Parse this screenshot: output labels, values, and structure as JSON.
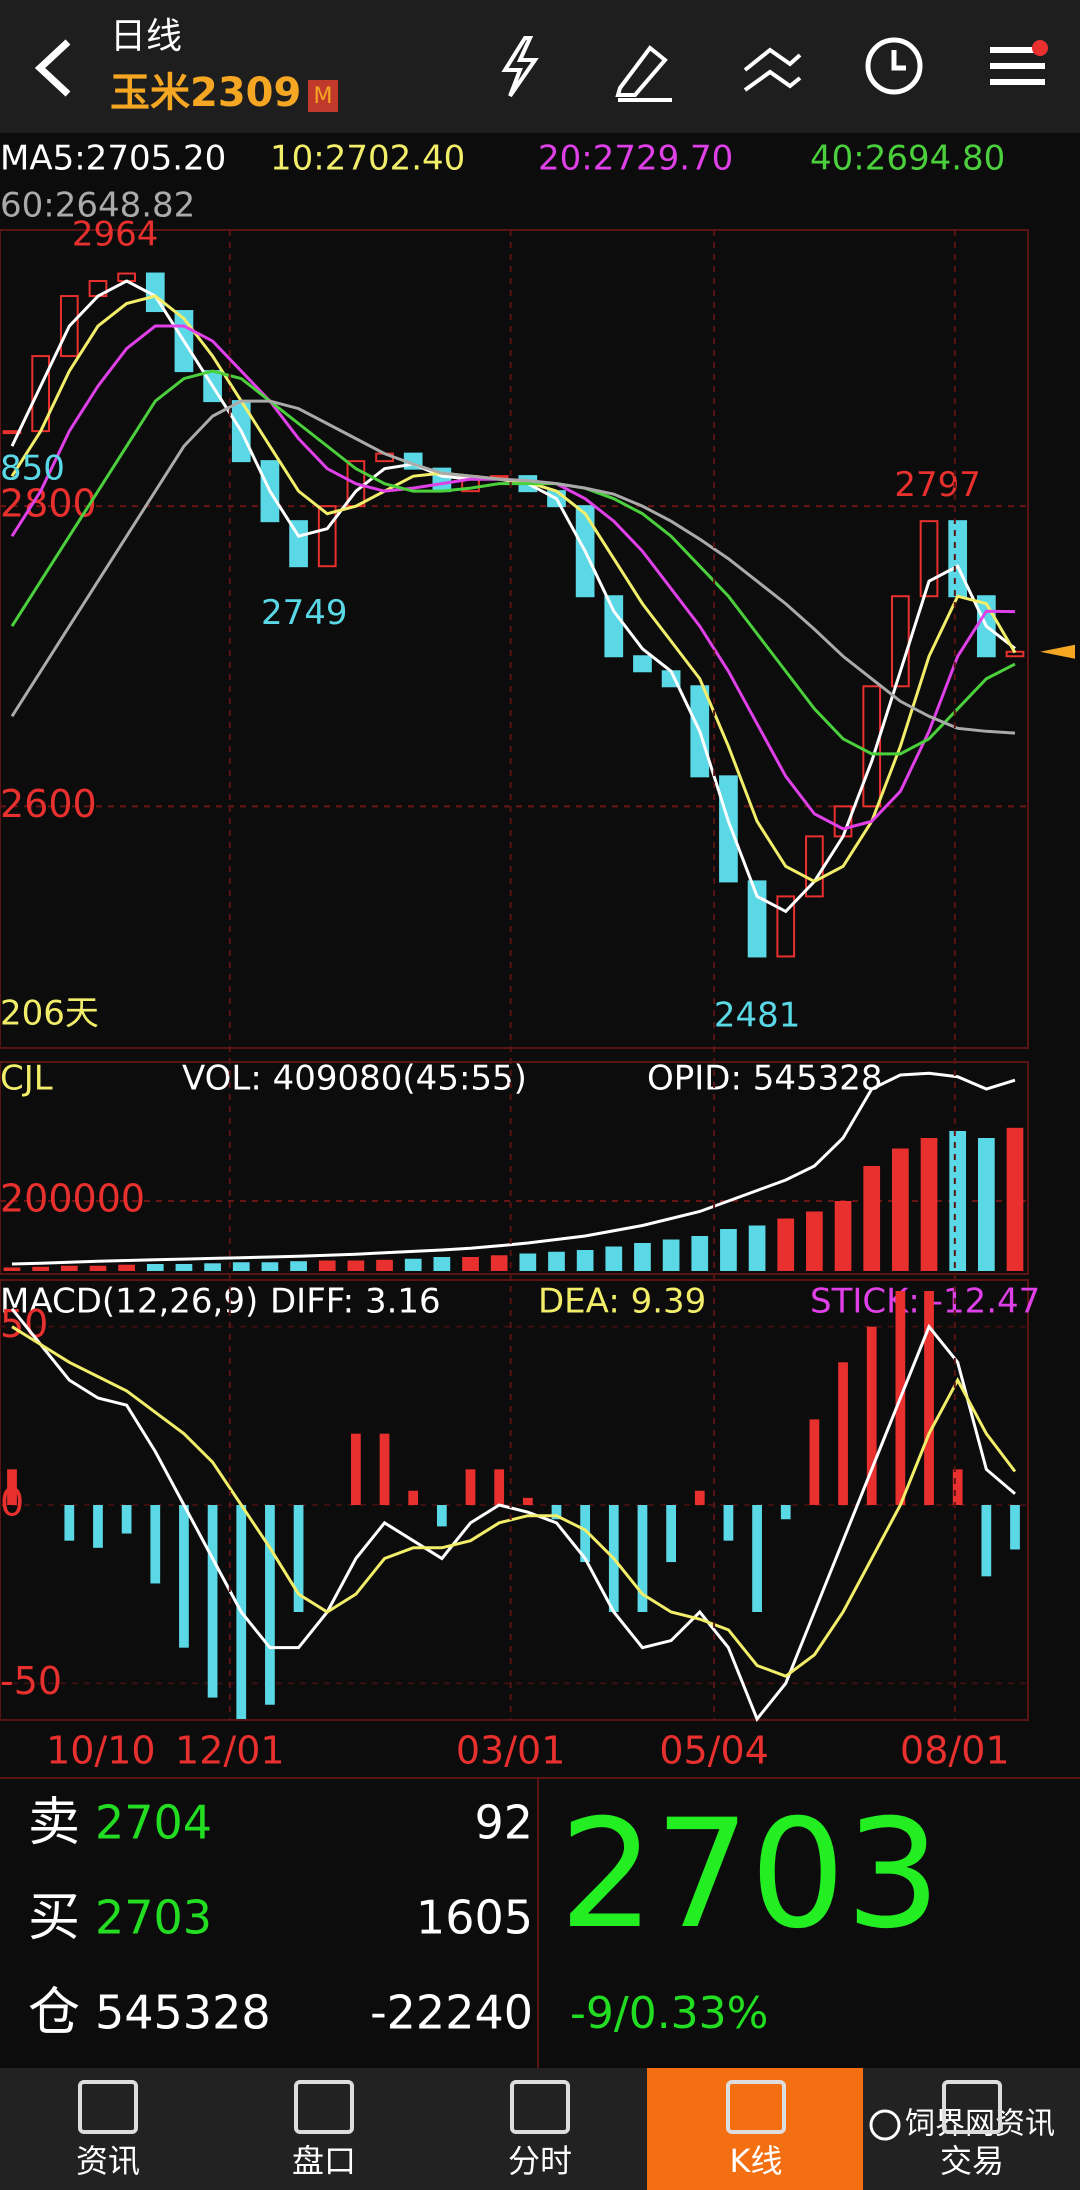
{
  "header": {
    "title": "日线",
    "symbol": "玉米2309",
    "badge": "M"
  },
  "chart_data": [
    {
      "type": "candlestick",
      "up_color": "#e8302e",
      "down_color": "#5ad8e6",
      "values": [
        2850,
        2900,
        2940,
        2950,
        2955,
        2930,
        2890,
        2870,
        2830,
        2790,
        2760,
        2800,
        2830,
        2835,
        2825,
        2810,
        2820,
        2820,
        2810,
        2800,
        2740,
        2700,
        2690,
        2680,
        2620,
        2550,
        2500,
        2540,
        2580,
        2600,
        2680,
        2740,
        2790,
        2740,
        2700,
        2703
      ],
      "series": [
        {
          "name": "MA5:2705.20",
          "color": "#ffffff",
          "values": [
            2840,
            2880,
            2920,
            2940,
            2950,
            2940,
            2910,
            2880,
            2850,
            2810,
            2780,
            2785,
            2810,
            2825,
            2828,
            2820,
            2818,
            2818,
            2815,
            2805,
            2770,
            2730,
            2705,
            2690,
            2650,
            2590,
            2540,
            2530,
            2550,
            2580,
            2630,
            2690,
            2750,
            2760,
            2720,
            2705.2
          ]
        },
        {
          "name": "10:2702.40",
          "color": "#f2ee6a",
          "values": [
            2820,
            2850,
            2890,
            2920,
            2935,
            2940,
            2925,
            2900,
            2870,
            2840,
            2810,
            2795,
            2800,
            2810,
            2820,
            2822,
            2820,
            2818,
            2816,
            2810,
            2795,
            2765,
            2735,
            2710,
            2685,
            2640,
            2590,
            2560,
            2550,
            2560,
            2590,
            2640,
            2700,
            2740,
            2735,
            2702.4
          ]
        },
        {
          "name": "20:2729.70",
          "color": "#e040e8",
          "values": [
            2780,
            2810,
            2850,
            2880,
            2905,
            2920,
            2920,
            2910,
            2890,
            2870,
            2845,
            2825,
            2815,
            2810,
            2812,
            2815,
            2818,
            2818,
            2817,
            2815,
            2805,
            2790,
            2770,
            2745,
            2720,
            2690,
            2655,
            2620,
            2595,
            2585,
            2590,
            2610,
            2650,
            2700,
            2730,
            2729.7
          ]
        },
        {
          "name": "40:2694.80",
          "color": "#4ccf3c",
          "values": [
            2720,
            2750,
            2780,
            2810,
            2840,
            2870,
            2885,
            2890,
            2885,
            2870,
            2855,
            2840,
            2825,
            2815,
            2810,
            2810,
            2812,
            2815,
            2815,
            2815,
            2812,
            2805,
            2795,
            2780,
            2760,
            2740,
            2715,
            2690,
            2665,
            2645,
            2635,
            2635,
            2645,
            2665,
            2685,
            2694.8
          ]
        },
        {
          "name": "60:2648.82",
          "color": "#aaaaaa",
          "values": [
            2660,
            2690,
            2720,
            2750,
            2780,
            2810,
            2840,
            2860,
            2870,
            2870,
            2865,
            2855,
            2845,
            2835,
            2828,
            2822,
            2820,
            2818,
            2817,
            2815,
            2812,
            2808,
            2800,
            2790,
            2778,
            2765,
            2750,
            2735,
            2718,
            2700,
            2685,
            2670,
            2660,
            2652,
            2650,
            2648.82
          ]
        }
      ],
      "ylim": [
        2439,
        2984
      ],
      "yticks": [
        2600,
        2800
      ],
      "xlim": [
        0,
        35
      ],
      "grid": true,
      "annotations": [
        2964,
        2749,
        2481,
        2797
      ],
      "edge_label": "850",
      "span_label": "206天"
    },
    {
      "type": "bar",
      "title": "CJL",
      "series": [
        {
          "name": "VOL: 409080(45:55)",
          "color": "#ffffff",
          "values": [
            10000,
            12000,
            15000,
            15000,
            18000,
            20000,
            20000,
            22000,
            25000,
            25000,
            28000,
            30000,
            30000,
            32000,
            35000,
            40000,
            40000,
            45000,
            50000,
            55000,
            60000,
            70000,
            80000,
            90000,
            100000,
            120000,
            130000,
            150000,
            170000,
            200000,
            300000,
            350000,
            380000,
            400000,
            380000,
            409080
          ]
        },
        {
          "name": "OPID: 545328",
          "color": "#ffffff",
          "values": [
            20000,
            22000,
            25000,
            28000,
            30000,
            32000,
            34000,
            36000,
            38000,
            40000,
            42000,
            45000,
            48000,
            52000,
            56000,
            60000,
            65000,
            72000,
            80000,
            90000,
            100000,
            115000,
            130000,
            150000,
            170000,
            200000,
            230000,
            260000,
            300000,
            380000,
            520000,
            560000,
            565000,
            555000,
            520000,
            545328
          ]
        }
      ],
      "ylim": [
        0,
        580000
      ],
      "yticks": [
        200000
      ],
      "xlim": [
        0,
        35
      ],
      "grid": true
    },
    {
      "type": "macd",
      "title": "MACD(12,26,9)",
      "series": [
        {
          "name": "DIFF: 3.16",
          "color": "#ffffff",
          "values": [
            55,
            45,
            35,
            30,
            28,
            15,
            0,
            -15,
            -30,
            -40,
            -40,
            -30,
            -15,
            -5,
            -10,
            -15,
            -5,
            0,
            -2,
            -5,
            -15,
            -30,
            -40,
            -38,
            -30,
            -40,
            -60,
            -50,
            -30,
            -10,
            10,
            30,
            50,
            40,
            10,
            3.16
          ]
        },
        {
          "name": "DEA: 9.39",
          "color": "#f2ee6a",
          "values": [
            50,
            45,
            40,
            36,
            32,
            26,
            20,
            12,
            0,
            -12,
            -25,
            -30,
            -25,
            -15,
            -12,
            -12,
            -10,
            -5,
            -3,
            -3,
            -7,
            -15,
            -25,
            -30,
            -32,
            -35,
            -45,
            -48,
            -42,
            -30,
            -15,
            0,
            20,
            35,
            20,
            9.39
          ]
        },
        {
          "name": "STICK: -12.47",
          "color": "#e040e8",
          "values": [
            10,
            0,
            -10,
            -12,
            -8,
            -22,
            -40,
            -54,
            -60,
            -56,
            -30,
            0,
            20,
            20,
            4,
            -6,
            10,
            10,
            2,
            -4,
            -16,
            -30,
            -30,
            -16,
            4,
            -10,
            -30,
            -4,
            24,
            40,
            50,
            60,
            60,
            10,
            -20,
            -12.47
          ]
        }
      ],
      "ylim": [
        -60,
        60
      ],
      "yticks": [
        50,
        0,
        -50
      ],
      "xlim": [
        0,
        35
      ],
      "grid": true,
      "xticks": [
        {
          "value": 3.1,
          "label": "10/10"
        },
        {
          "value": 7.6,
          "label": "12/01"
        },
        {
          "value": 17.4,
          "label": "03/01"
        },
        {
          "value": 24.5,
          "label": "05/04"
        },
        {
          "value": 32.9,
          "label": "08/01"
        }
      ]
    }
  ],
  "quote": {
    "rows": [
      {
        "label": "卖",
        "value": 2704,
        "count": 92
      },
      {
        "label": "买",
        "value": 2703,
        "count": 1605
      },
      {
        "label": "仓",
        "value": 545328,
        "count": -22240
      }
    ],
    "last": 2703,
    "change": "-9/0.33%"
  },
  "nav": [
    "资讯",
    "盘口",
    "分时",
    "K线",
    "交易"
  ],
  "watermark": "饲界网资讯"
}
